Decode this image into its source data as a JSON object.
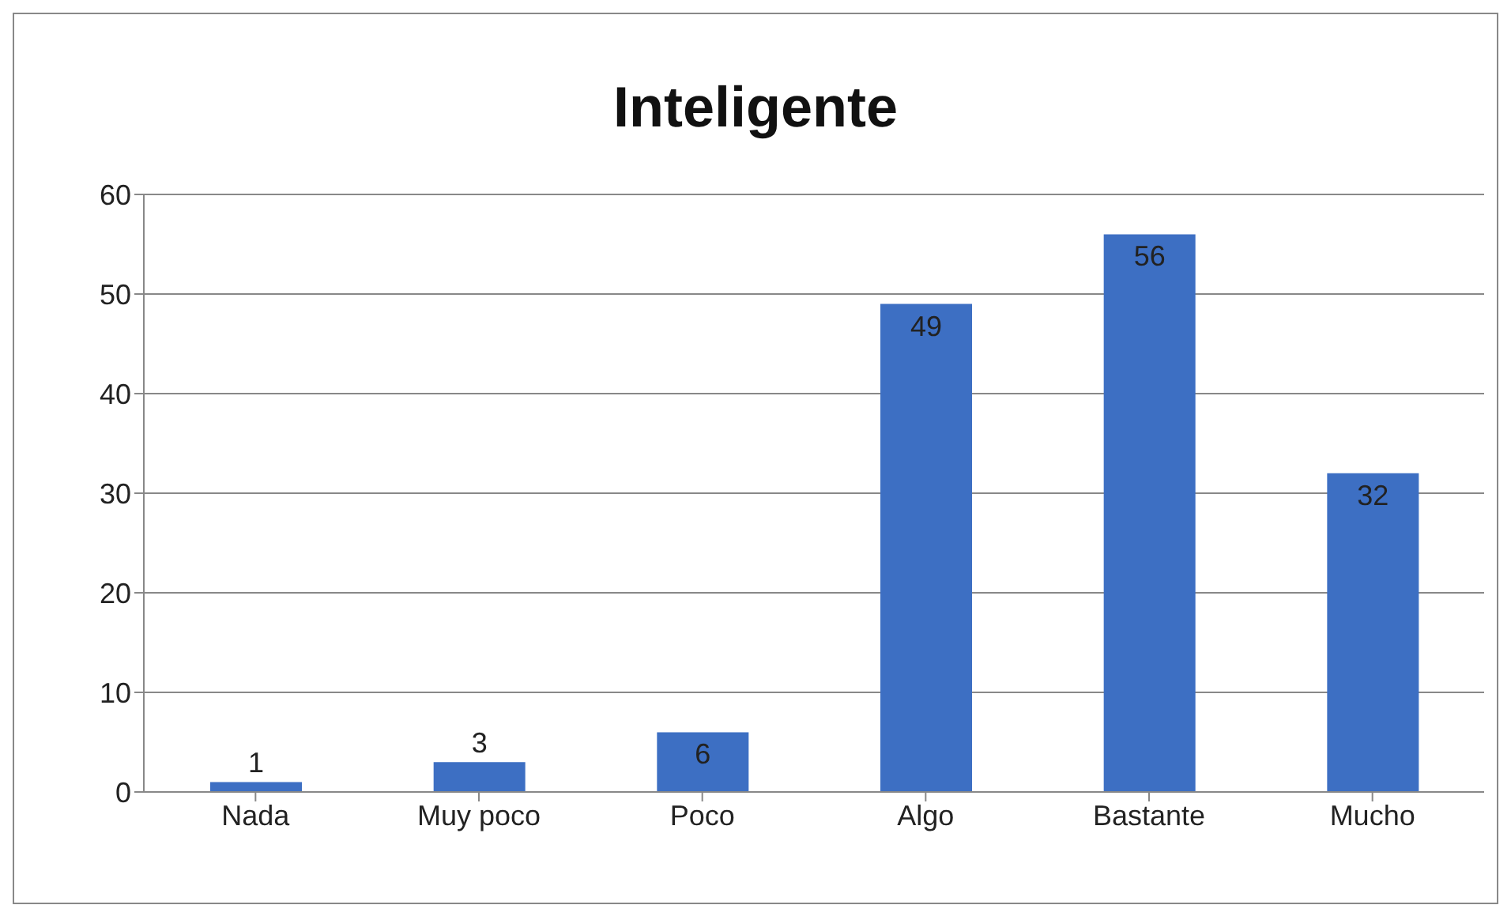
{
  "chart_data": {
    "type": "bar",
    "title": "Inteligente",
    "categories": [
      "Nada",
      "Muy poco",
      "Poco",
      "Algo",
      "Bastante",
      "Mucho"
    ],
    "values": [
      1,
      3,
      6,
      49,
      56,
      32
    ],
    "color": "#3d6fc3",
    "ylim": [
      0,
      60
    ],
    "yticks": [
      0,
      10,
      20,
      30,
      40,
      50,
      60
    ],
    "grid": "y",
    "data_labels": true
  }
}
